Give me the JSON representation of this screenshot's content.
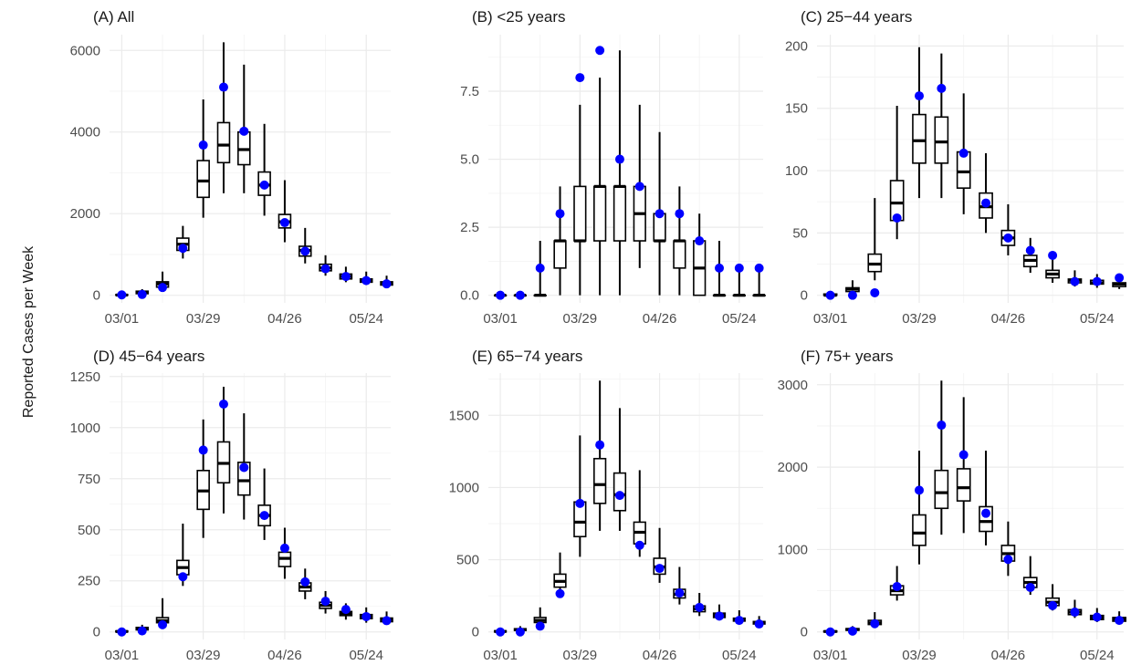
{
  "ylabel": "Reported Cases per Week",
  "x_tick_labels": [
    "03/01",
    "03/29",
    "04/26",
    "05/24"
  ],
  "colors": {
    "observed": "#0000ff",
    "box": "#000000",
    "grid": "#ebebeb"
  },
  "chart_data": [
    {
      "type": "boxplot",
      "title": "(A) All",
      "ylim": [
        0,
        6200
      ],
      "y_ticks": [
        0,
        2000,
        4000,
        6000
      ],
      "weeks": [
        "03/01",
        "03/08",
        "03/15",
        "03/22",
        "03/29",
        "04/05",
        "04/12",
        "04/19",
        "04/26",
        "05/03",
        "05/10",
        "05/17",
        "05/24",
        "05/31"
      ],
      "boxes": [
        {
          "min": 0,
          "q1": 0,
          "median": 5,
          "q3": 15,
          "max": 40
        },
        {
          "min": 10,
          "q1": 40,
          "median": 70,
          "q3": 100,
          "max": 150
        },
        {
          "min": 100,
          "q1": 200,
          "median": 280,
          "q3": 330,
          "max": 580
        },
        {
          "min": 900,
          "q1": 1100,
          "median": 1250,
          "q3": 1400,
          "max": 1700
        },
        {
          "min": 1900,
          "q1": 2400,
          "median": 2800,
          "q3": 3300,
          "max": 4800
        },
        {
          "min": 2500,
          "q1": 3250,
          "median": 3680,
          "q3": 4230,
          "max": 6200
        },
        {
          "min": 2500,
          "q1": 3200,
          "median": 3570,
          "q3": 4000,
          "max": 5650
        },
        {
          "min": 1950,
          "q1": 2450,
          "median": 2700,
          "q3": 3020,
          "max": 4200
        },
        {
          "min": 1300,
          "q1": 1650,
          "median": 1800,
          "q3": 1980,
          "max": 2820
        },
        {
          "min": 780,
          "q1": 960,
          "median": 1100,
          "q3": 1200,
          "max": 1650
        },
        {
          "min": 480,
          "q1": 600,
          "median": 670,
          "q3": 760,
          "max": 980
        },
        {
          "min": 320,
          "q1": 400,
          "median": 460,
          "q3": 520,
          "max": 700
        },
        {
          "min": 250,
          "q1": 320,
          "median": 360,
          "q3": 400,
          "max": 580
        },
        {
          "min": 180,
          "q1": 250,
          "median": 290,
          "q3": 330,
          "max": 480
        }
      ],
      "observed": [
        10,
        20,
        190,
        1150,
        3680,
        5100,
        4020,
        2700,
        1780,
        1080,
        650,
        460,
        360,
        280
      ]
    },
    {
      "type": "boxplot",
      "title": "(B) <25 years",
      "ylim": [
        0,
        9.3
      ],
      "y_ticks": [
        0,
        2.5,
        5,
        7.5
      ],
      "y_tick_labels": [
        "0.0",
        "2.5",
        "5.0",
        "7.5"
      ],
      "weeks": [
        "03/01",
        "03/08",
        "03/15",
        "03/22",
        "03/29",
        "04/05",
        "04/12",
        "04/19",
        "04/26",
        "05/03",
        "05/10",
        "05/17",
        "05/24",
        "05/31"
      ],
      "boxes": [
        {
          "min": 0,
          "q1": 0,
          "median": 0,
          "q3": 0,
          "max": 0
        },
        {
          "min": 0,
          "q1": 0,
          "median": 0,
          "q3": 0,
          "max": 0
        },
        {
          "min": 0,
          "q1": 0,
          "median": 0,
          "q3": 0,
          "max": 2
        },
        {
          "min": 0,
          "q1": 1,
          "median": 2,
          "q3": 2,
          "max": 4
        },
        {
          "min": 0,
          "q1": 2,
          "median": 2,
          "q3": 4,
          "max": 7
        },
        {
          "min": 0,
          "q1": 2,
          "median": 4,
          "q3": 4,
          "max": 8
        },
        {
          "min": 0,
          "q1": 2,
          "median": 4,
          "q3": 4,
          "max": 9
        },
        {
          "min": 1,
          "q1": 2,
          "median": 3,
          "q3": 4,
          "max": 7
        },
        {
          "min": 0,
          "q1": 2,
          "median": 2,
          "q3": 3,
          "max": 6
        },
        {
          "min": 0,
          "q1": 1,
          "median": 2,
          "q3": 2,
          "max": 4
        },
        {
          "min": 0,
          "q1": 0,
          "median": 1,
          "q3": 2,
          "max": 3
        },
        {
          "min": 0,
          "q1": 0,
          "median": 0,
          "q3": 0,
          "max": 2
        },
        {
          "min": 0,
          "q1": 0,
          "median": 0,
          "q3": 0,
          "max": 1
        },
        {
          "min": 0,
          "q1": 0,
          "median": 0,
          "q3": 0,
          "max": 1
        }
      ],
      "observed": [
        0,
        0,
        1,
        3,
        8,
        9,
        5,
        4,
        3,
        3,
        2,
        1,
        1,
        1
      ]
    },
    {
      "type": "boxplot",
      "title": "(C) 25−44 years",
      "ylim": [
        0,
        203
      ],
      "y_ticks": [
        0,
        50,
        100,
        150,
        200
      ],
      "weeks": [
        "03/01",
        "03/08",
        "03/15",
        "03/22",
        "03/29",
        "04/05",
        "04/12",
        "04/19",
        "04/26",
        "05/03",
        "05/10",
        "05/17",
        "05/24",
        "05/31"
      ],
      "boxes": [
        {
          "min": 0,
          "q1": 0,
          "median": 0,
          "q3": 1,
          "max": 2
        },
        {
          "min": 1,
          "q1": 3,
          "median": 5,
          "q3": 6,
          "max": 12
        },
        {
          "min": 12,
          "q1": 19,
          "median": 25,
          "q3": 33,
          "max": 78
        },
        {
          "min": 45,
          "q1": 60,
          "median": 74,
          "q3": 92,
          "max": 152
        },
        {
          "min": 78,
          "q1": 106,
          "median": 124,
          "q3": 145,
          "max": 199
        },
        {
          "min": 78,
          "q1": 106,
          "median": 123,
          "q3": 143,
          "max": 194
        },
        {
          "min": 65,
          "q1": 86,
          "median": 99,
          "q3": 115,
          "max": 162
        },
        {
          "min": 50,
          "q1": 62,
          "median": 71,
          "q3": 82,
          "max": 114
        },
        {
          "min": 32,
          "q1": 40,
          "median": 46,
          "q3": 52,
          "max": 73
        },
        {
          "min": 18,
          "q1": 23,
          "median": 28,
          "q3": 32,
          "max": 46
        },
        {
          "min": 10,
          "q1": 14,
          "median": 17,
          "q3": 20,
          "max": 30
        },
        {
          "min": 7,
          "q1": 10,
          "median": 12,
          "q3": 13,
          "max": 20
        },
        {
          "min": 6,
          "q1": 9,
          "median": 10,
          "q3": 12,
          "max": 17
        },
        {
          "min": 5,
          "q1": 7,
          "median": 9,
          "q3": 10,
          "max": 15
        }
      ],
      "observed": [
        0,
        0,
        2,
        62,
        160,
        166,
        114,
        74,
        46,
        36,
        32,
        11,
        11,
        14
      ]
    },
    {
      "type": "boxplot",
      "title": "(D) 45−64 years",
      "ylim": [
        0,
        1230
      ],
      "y_ticks": [
        0,
        250,
        500,
        750,
        1000,
        1250
      ],
      "weeks": [
        "03/01",
        "03/08",
        "03/15",
        "03/22",
        "03/29",
        "04/05",
        "04/12",
        "04/19",
        "04/26",
        "05/03",
        "05/10",
        "05/17",
        "05/24",
        "05/31"
      ],
      "boxes": [
        {
          "min": 0,
          "q1": 0,
          "median": 2,
          "q3": 5,
          "max": 10
        },
        {
          "min": 3,
          "q1": 10,
          "median": 15,
          "q3": 22,
          "max": 35
        },
        {
          "min": 25,
          "q1": 45,
          "median": 55,
          "q3": 70,
          "max": 165
        },
        {
          "min": 225,
          "q1": 280,
          "median": 315,
          "q3": 350,
          "max": 530
        },
        {
          "min": 460,
          "q1": 600,
          "median": 690,
          "q3": 790,
          "max": 1040
        },
        {
          "min": 580,
          "q1": 730,
          "median": 825,
          "q3": 930,
          "max": 1200
        },
        {
          "min": 550,
          "q1": 670,
          "median": 740,
          "q3": 830,
          "max": 1070
        },
        {
          "min": 450,
          "q1": 520,
          "median": 570,
          "q3": 620,
          "max": 800
        },
        {
          "min": 260,
          "q1": 320,
          "median": 360,
          "q3": 390,
          "max": 510
        },
        {
          "min": 160,
          "q1": 200,
          "median": 220,
          "q3": 240,
          "max": 310
        },
        {
          "min": 90,
          "q1": 115,
          "median": 130,
          "q3": 145,
          "max": 200
        },
        {
          "min": 60,
          "q1": 80,
          "median": 90,
          "q3": 100,
          "max": 140
        },
        {
          "min": 45,
          "q1": 65,
          "median": 75,
          "q3": 85,
          "max": 120
        },
        {
          "min": 35,
          "q1": 50,
          "median": 60,
          "q3": 68,
          "max": 100
        }
      ],
      "observed": [
        0,
        5,
        35,
        270,
        890,
        1115,
        805,
        570,
        410,
        245,
        150,
        110,
        75,
        55
      ]
    },
    {
      "type": "boxplot",
      "title": "(E) 65−74 years",
      "ylim": [
        0,
        1740
      ],
      "y_ticks": [
        0,
        500,
        1000,
        1500
      ],
      "weeks": [
        "03/01",
        "03/08",
        "03/15",
        "03/22",
        "03/29",
        "04/05",
        "04/12",
        "04/19",
        "04/26",
        "05/03",
        "05/10",
        "05/17",
        "05/24",
        "05/31"
      ],
      "boxes": [
        {
          "min": 0,
          "q1": 0,
          "median": 3,
          "q3": 8,
          "max": 15
        },
        {
          "min": 5,
          "q1": 10,
          "median": 15,
          "q3": 22,
          "max": 40
        },
        {
          "min": 40,
          "q1": 65,
          "median": 80,
          "q3": 100,
          "max": 170
        },
        {
          "min": 250,
          "q1": 310,
          "median": 350,
          "q3": 400,
          "max": 550
        },
        {
          "min": 520,
          "q1": 660,
          "median": 760,
          "q3": 900,
          "max": 1360
        },
        {
          "min": 700,
          "q1": 890,
          "median": 1020,
          "q3": 1200,
          "max": 1740
        },
        {
          "min": 700,
          "q1": 840,
          "median": 950,
          "q3": 1100,
          "max": 1550
        },
        {
          "min": 520,
          "q1": 610,
          "median": 690,
          "q3": 760,
          "max": 1120
        },
        {
          "min": 340,
          "q1": 400,
          "median": 450,
          "q3": 510,
          "max": 720
        },
        {
          "min": 190,
          "q1": 235,
          "median": 260,
          "q3": 295,
          "max": 450
        },
        {
          "min": 110,
          "q1": 140,
          "median": 160,
          "q3": 180,
          "max": 270
        },
        {
          "min": 80,
          "q1": 100,
          "median": 115,
          "q3": 130,
          "max": 190
        },
        {
          "min": 55,
          "q1": 75,
          "median": 85,
          "q3": 95,
          "max": 150
        },
        {
          "min": 40,
          "q1": 55,
          "median": 65,
          "q3": 72,
          "max": 110
        }
      ],
      "observed": [
        0,
        0,
        40,
        265,
        890,
        1295,
        945,
        600,
        440,
        270,
        170,
        110,
        80,
        55
      ]
    },
    {
      "type": "boxplot",
      "title": "(F) 75+ years",
      "ylim": [
        0,
        3050
      ],
      "y_ticks": [
        0,
        1000,
        2000,
        3000
      ],
      "weeks": [
        "03/01",
        "03/08",
        "03/15",
        "03/22",
        "03/29",
        "04/05",
        "04/12",
        "04/19",
        "04/26",
        "05/03",
        "05/10",
        "05/17",
        "05/24",
        "05/31"
      ],
      "boxes": [
        {
          "min": 0,
          "q1": 0,
          "median": 5,
          "q3": 12,
          "max": 25
        },
        {
          "min": 10,
          "q1": 20,
          "median": 30,
          "q3": 40,
          "max": 70
        },
        {
          "min": 60,
          "q1": 90,
          "median": 110,
          "q3": 140,
          "max": 240
        },
        {
          "min": 380,
          "q1": 450,
          "median": 500,
          "q3": 560,
          "max": 800
        },
        {
          "min": 820,
          "q1": 1050,
          "median": 1200,
          "q3": 1420,
          "max": 2200
        },
        {
          "min": 1180,
          "q1": 1500,
          "median": 1690,
          "q3": 1960,
          "max": 3050
        },
        {
          "min": 1200,
          "q1": 1590,
          "median": 1750,
          "q3": 1980,
          "max": 2850
        },
        {
          "min": 1050,
          "q1": 1220,
          "median": 1340,
          "q3": 1520,
          "max": 2200
        },
        {
          "min": 680,
          "q1": 860,
          "median": 950,
          "q3": 1050,
          "max": 1340
        },
        {
          "min": 450,
          "q1": 540,
          "median": 600,
          "q3": 660,
          "max": 920
        },
        {
          "min": 260,
          "q1": 320,
          "median": 360,
          "q3": 410,
          "max": 580
        },
        {
          "min": 170,
          "q1": 210,
          "median": 240,
          "q3": 270,
          "max": 390
        },
        {
          "min": 120,
          "q1": 150,
          "median": 175,
          "q3": 200,
          "max": 290
        },
        {
          "min": 100,
          "q1": 130,
          "median": 155,
          "q3": 175,
          "max": 250
        }
      ],
      "observed": [
        0,
        10,
        100,
        550,
        1720,
        2510,
        2150,
        1440,
        880,
        540,
        320,
        240,
        180,
        140
      ]
    }
  ]
}
